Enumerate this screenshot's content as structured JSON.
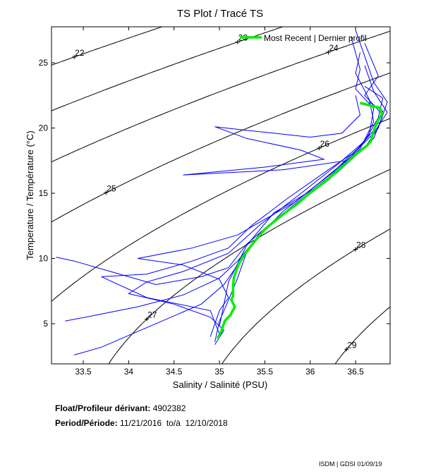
{
  "chart_data": {
    "type": "line",
    "title": "TS Plot / Tracé TS",
    "xlabel": "Salinity / Salinité (PSU)",
    "ylabel": "Temperature / Température (°C)",
    "xlim": [
      33.15,
      36.88
    ],
    "ylim": [
      1.92,
      27.76
    ],
    "xticks": [
      33.5,
      34,
      34.5,
      35,
      35.5,
      36,
      36.5
    ],
    "xtick_labels": [
      "33.5",
      "34",
      "34.5",
      "35",
      "35.5",
      "36",
      "36.5"
    ],
    "yticks": [
      5,
      10,
      15,
      20,
      25
    ],
    "ytick_labels": [
      "5",
      "10",
      "15",
      "20",
      "25"
    ],
    "grid": false,
    "legend": {
      "position": "top-right",
      "label": "Most Recent | Dernier profil"
    },
    "isopycnals": {
      "levels": [
        22,
        23,
        24,
        25,
        26,
        27,
        28,
        29
      ],
      "labels": [
        "22",
        "23",
        "24",
        "25",
        "26",
        "27",
        "28",
        "29"
      ],
      "label_salinity": [
        33.4,
        35.2,
        36.2,
        33.75,
        36.1,
        34.2,
        36.5,
        36.4
      ],
      "color": "#000000"
    },
    "colors": {
      "history": "#0000ff",
      "recent": "#00ee00"
    },
    "most_recent": [
      [
        36.55,
        21.92
      ],
      [
        36.77,
        21.54
      ],
      [
        36.79,
        21.05
      ],
      [
        36.74,
        20.51
      ],
      [
        36.7,
        19.81
      ],
      [
        36.67,
        19.0
      ],
      [
        36.63,
        18.68
      ],
      [
        36.51,
        18.03
      ],
      [
        36.32,
        16.84
      ],
      [
        36.16,
        15.86
      ],
      [
        36.0,
        15.05
      ],
      [
        35.85,
        14.14
      ],
      [
        35.69,
        13.32
      ],
      [
        35.5,
        12.24
      ],
      [
        35.37,
        11.16
      ],
      [
        35.27,
        10.24
      ],
      [
        35.21,
        9.54
      ],
      [
        35.16,
        8.57
      ],
      [
        35.15,
        7.92
      ],
      [
        35.15,
        7.11
      ],
      [
        35.13,
        6.84
      ],
      [
        35.17,
        6.3
      ],
      [
        35.12,
        5.65
      ],
      [
        35.06,
        5.22
      ],
      [
        35.02,
        4.41
      ],
      [
        34.98,
        3.86
      ]
    ],
    "profiles": [
      [
        [
          36.5,
          27.5
        ],
        [
          36.6,
          25.5
        ],
        [
          36.7,
          23.5
        ],
        [
          36.85,
          22
        ],
        [
          36.75,
          20
        ],
        [
          36.6,
          18.5
        ],
        [
          36.3,
          16.6
        ],
        [
          35.9,
          14.4
        ],
        [
          35.5,
          12.3
        ],
        [
          35.3,
          10.5
        ],
        [
          35.2,
          8.5
        ],
        [
          35.1,
          6.8
        ],
        [
          35.0,
          5.2
        ],
        [
          34.95,
          3.6
        ]
      ],
      [
        [
          36.45,
          27.0
        ],
        [
          36.55,
          24.5
        ],
        [
          36.5,
          23
        ],
        [
          36.7,
          21.5
        ],
        [
          36.65,
          19.5
        ],
        [
          36.45,
          17.8
        ],
        [
          36.1,
          15.8
        ],
        [
          35.7,
          13.6
        ],
        [
          35.4,
          11.5
        ],
        [
          35.2,
          9.8
        ],
        [
          35.0,
          8.5
        ],
        [
          34.6,
          7.2
        ],
        [
          34.1,
          6.3
        ],
        [
          33.6,
          5.6
        ],
        [
          33.3,
          5.2
        ]
      ],
      [
        [
          36.6,
          26.5
        ],
        [
          36.75,
          24
        ],
        [
          36.6,
          22.5
        ],
        [
          36.8,
          21
        ],
        [
          36.7,
          19.2
        ],
        [
          36.4,
          17.3
        ],
        [
          36.0,
          15.0
        ],
        [
          35.6,
          12.9
        ],
        [
          35.3,
          11.1
        ],
        [
          35.1,
          9.3
        ],
        [
          34.8,
          8.6
        ],
        [
          34.3,
          8.0
        ],
        [
          33.8,
          9.0
        ],
        [
          33.4,
          9.8
        ],
        [
          33.2,
          10.1
        ]
      ],
      [
        [
          36.55,
          25.8
        ],
        [
          36.5,
          24.2
        ],
        [
          36.65,
          22.2
        ],
        [
          36.7,
          20.5
        ],
        [
          36.55,
          18.4
        ],
        [
          36.2,
          16.2
        ],
        [
          35.8,
          14.0
        ],
        [
          35.45,
          12.0
        ],
        [
          35.25,
          10.0
        ],
        [
          35.05,
          8.0
        ],
        [
          34.8,
          6.5
        ],
        [
          34.2,
          4.7
        ],
        [
          33.7,
          3.2
        ],
        [
          33.4,
          2.6
        ]
      ],
      [
        [
          36.6,
          23.2
        ],
        [
          36.8,
          22.3
        ],
        [
          36.75,
          20.8
        ],
        [
          36.6,
          19.0
        ],
        [
          36.3,
          17.2
        ],
        [
          35.9,
          15.0
        ],
        [
          35.45,
          12.6
        ],
        [
          35.1,
          10.4
        ],
        [
          34.6,
          9.0
        ],
        [
          34.2,
          8.2
        ],
        [
          34.0,
          7.3
        ],
        [
          34.5,
          6.5
        ],
        [
          34.9,
          5.5
        ],
        [
          35.05,
          4.5
        ],
        [
          34.95,
          3.4
        ]
      ],
      [
        [
          36.6,
          24.8
        ],
        [
          36.7,
          22.8
        ],
        [
          36.85,
          21.2
        ],
        [
          36.7,
          19.6
        ],
        [
          36.5,
          18.2
        ],
        [
          36.2,
          16.8
        ],
        [
          35.75,
          14.6
        ],
        [
          35.35,
          12.5
        ],
        [
          35.1,
          10.8
        ],
        [
          34.7,
          9.8
        ],
        [
          34.2,
          8.8
        ],
        [
          33.7,
          8.6
        ],
        [
          34.2,
          7.0
        ],
        [
          34.9,
          6.0
        ],
        [
          35.0,
          4.2
        ]
      ],
      [
        [
          36.5,
          22.5
        ],
        [
          36.55,
          21.0
        ],
        [
          36.35,
          19.6
        ],
        [
          36.0,
          19.3
        ],
        [
          35.6,
          19.6
        ],
        [
          35.2,
          19.9
        ],
        [
          34.95,
          20.1
        ],
        [
          35.3,
          19.2
        ],
        [
          35.9,
          18.3
        ],
        [
          36.15,
          17.6
        ],
        [
          35.5,
          17.0
        ],
        [
          34.6,
          16.4
        ],
        [
          35.7,
          16.8
        ],
        [
          36.4,
          17.5
        ],
        [
          36.2,
          16.0
        ],
        [
          35.6,
          13.5
        ],
        [
          35.3,
          11.0
        ],
        [
          35.1,
          8.2
        ],
        [
          35.0,
          4.8
        ]
      ],
      [
        [
          36.65,
          22.0
        ],
        [
          36.8,
          21.3
        ],
        [
          36.72,
          20.0
        ],
        [
          36.55,
          18.6
        ],
        [
          36.25,
          16.6
        ],
        [
          35.85,
          14.4
        ],
        [
          35.2,
          11.8
        ],
        [
          34.7,
          10.8
        ],
        [
          34.1,
          10.0
        ],
        [
          34.6,
          9.5
        ],
        [
          35.0,
          8.4
        ],
        [
          35.1,
          7.0
        ],
        [
          35.0,
          6.0
        ],
        [
          34.9,
          4.0
        ]
      ]
    ]
  },
  "info": {
    "float_label": "Float/Profileur dérivant:",
    "float_id": "4902382",
    "period_label": "Period/Période:",
    "period_start": "11/21/2016",
    "period_sep": "to/à",
    "period_end": "12/10/2018"
  },
  "footer": "ISDM | GDSI 01/09/19"
}
